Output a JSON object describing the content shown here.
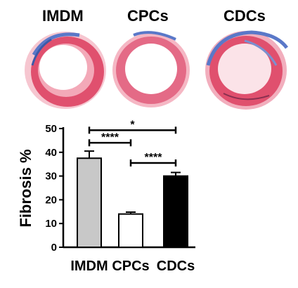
{
  "panels": [
    {
      "label": "IMDM"
    },
    {
      "label": "CPCs"
    },
    {
      "label": "CDCs"
    }
  ],
  "colors": {
    "tissue_red": "#e0506e",
    "tissue_pink": "#f08aa0",
    "fibrosis_blue": "#5a78c8",
    "bar_imdm": "#c8c8c8",
    "bar_cpcs": "#ffffff",
    "bar_cdcs": "#000000"
  },
  "chart_data": {
    "type": "bar",
    "categories": [
      "IMDM",
      "CPCs",
      "CDCs"
    ],
    "values": [
      37.5,
      14,
      30
    ],
    "errors": [
      3,
      0.8,
      1.5
    ],
    "ylabel": "Fibrosis %",
    "ylim": [
      0,
      50
    ],
    "yticks": [
      0,
      10,
      20,
      30,
      40,
      50
    ],
    "significance": [
      {
        "from": 0,
        "to": 1,
        "label": "****"
      },
      {
        "from": 1,
        "to": 2,
        "label": "****"
      },
      {
        "from": 0,
        "to": 2,
        "label": "*"
      }
    ]
  }
}
